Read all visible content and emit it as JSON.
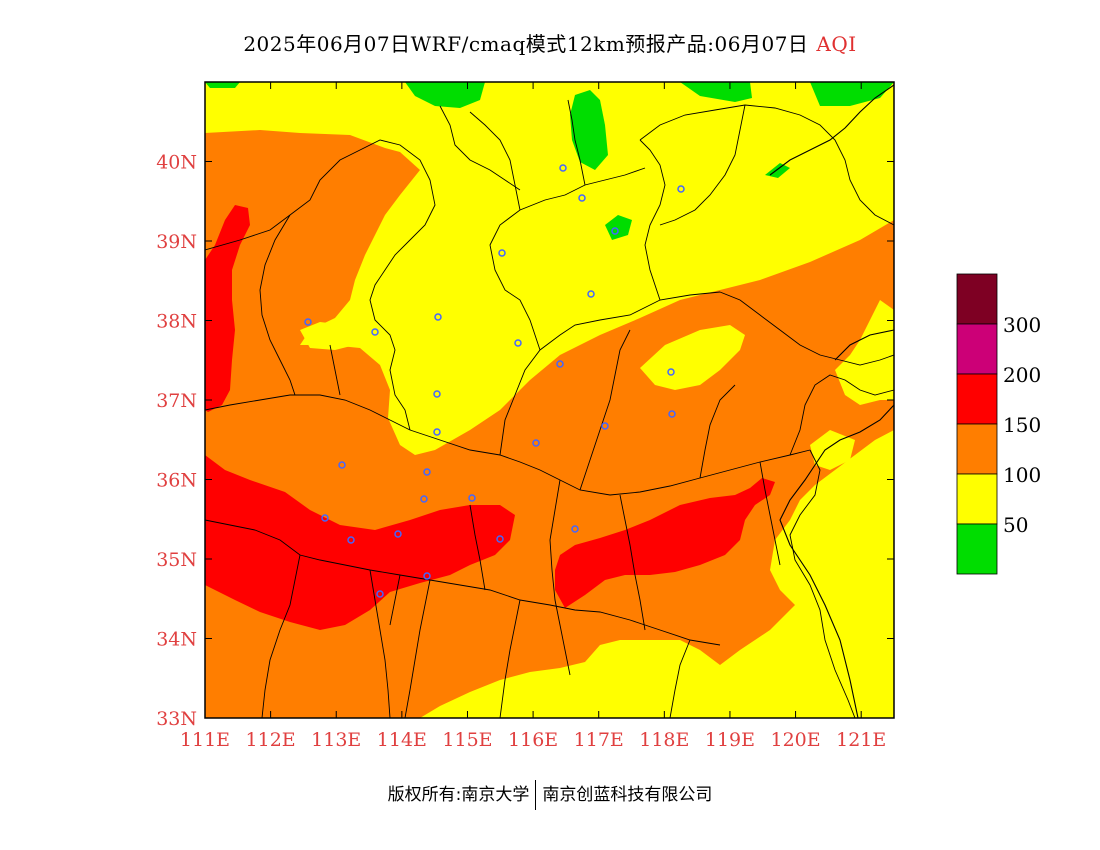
{
  "title": {
    "main": "2025年06月07日WRF/cmaq模式12km预报产品:06月07日",
    "variable": "AQI"
  },
  "colors": {
    "green": "#00dd00",
    "yellow": "#ffff00",
    "orange": "#ff7e00",
    "red": "#ff0000",
    "purple": "#cc0077",
    "maroon": "#7e0023",
    "axis_label": "#e04040",
    "station": "#4466ff"
  },
  "map": {
    "lon_range": [
      111,
      121.5
    ],
    "lat_range": [
      33,
      41
    ],
    "x_ticks": [
      "111E",
      "112E",
      "113E",
      "114E",
      "115E",
      "116E",
      "117E",
      "118E",
      "119E",
      "120E",
      "121E"
    ],
    "y_ticks": [
      "33N",
      "34N",
      "35N",
      "36N",
      "37N",
      "38N",
      "39N",
      "40N"
    ]
  },
  "legend": {
    "labels": [
      "300",
      "200",
      "150",
      "100",
      "50"
    ],
    "swatches": [
      "#7e0023",
      "#cc0077",
      "#ff0000",
      "#ff7e00",
      "#ffff00",
      "#00dd00"
    ]
  },
  "copyright": {
    "left": "版权所有:南京大学",
    "right": "南京创蓝科技有限公司"
  }
}
